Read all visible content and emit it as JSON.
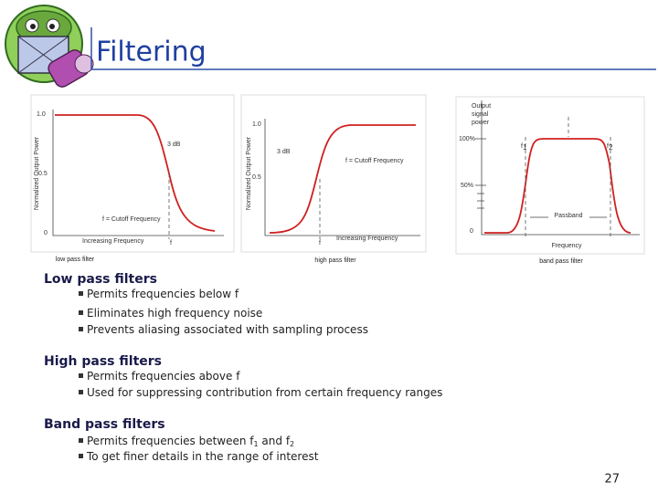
{
  "title": "Filtering",
  "figures": [
    {
      "caption": "low pass filter",
      "y_axis_label": "Normalized Output Power",
      "labels": [
        "1.0",
        "3 dB",
        "0.5",
        "0",
        "f = Cutoff Frequency",
        "Increasing Frequency",
        "f"
      ]
    },
    {
      "caption": "high pass filter",
      "y_axis_label": "Normalized Output Power",
      "labels": [
        "1.0",
        "0.5",
        "3 dB",
        "f = Cutoff Frequency",
        "Increasing Frequency",
        "f"
      ]
    },
    {
      "caption": "band pass filter",
      "y_axis_label": [
        "Output",
        "signal",
        "power"
      ],
      "labels": [
        "100%",
        "50%",
        "0",
        "Passband",
        "Frequency"
      ],
      "f1": [
        "f",
        "1"
      ],
      "f2": [
        "f",
        "2"
      ]
    }
  ],
  "sections": [
    {
      "heading": "Low pass filters",
      "bullets": [
        [
          "Permits frequencies below f"
        ],
        [
          "Eliminates high frequency noise"
        ],
        [
          "Prevents aliasing associated with sampling process"
        ]
      ]
    },
    {
      "heading": "High pass filters",
      "bullets": [
        [
          "Permits frequencies above f"
        ],
        [
          "Used for suppressing contribution from certain frequency ranges"
        ]
      ]
    },
    {
      "heading": "Band pass filters",
      "bullets": [
        [
          "Permits frequencies between f",
          "1",
          " and f",
          "2"
        ],
        [
          "To get finer details in the range of interest"
        ]
      ]
    }
  ],
  "page_number": "27"
}
